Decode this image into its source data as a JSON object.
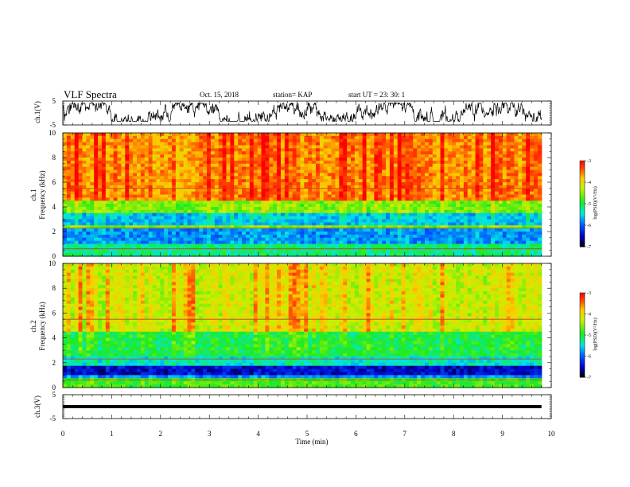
{
  "header": {
    "title": "VLF Spectra",
    "date": "Oct. 15, 2018",
    "station": "station= KAP",
    "start": "start  UT  =   23: 30: 1"
  },
  "chart_data": [
    {
      "type": "line",
      "name": "ch1-waveform",
      "ylabel": "ch.1(V)",
      "ylim": [
        -5,
        5
      ],
      "yticks": [
        "5",
        "-5"
      ],
      "note": "noisy waveform roughly between -3 V and 4 V over 0–9.8 min"
    },
    {
      "type": "heatmap",
      "name": "ch1-spectrogram",
      "ylabel": "ch.1\nFrequency (kHz)",
      "ylabel_line1": "ch.1",
      "ylabel_line2": "Frequency  (kHz)",
      "ylim": [
        0,
        10
      ],
      "yticks": [
        "0",
        "2",
        "4",
        "6",
        "8",
        "10"
      ],
      "colorbar": {
        "label": "log(PSD)(V²/Hz)",
        "range": [
          -7,
          -3
        ],
        "ticks": [
          "-3",
          "-4",
          "-5",
          "-6",
          "-7"
        ]
      },
      "bands_kHz": [
        {
          "from": 0,
          "to": 1.0,
          "level": -5.2
        },
        {
          "from": 1.0,
          "to": 2.2,
          "level": -5.8
        },
        {
          "from": 2.2,
          "to": 2.5,
          "level": -4.6
        },
        {
          "from": 2.5,
          "to": 3.6,
          "level": -5.6
        },
        {
          "from": 3.6,
          "to": 4.5,
          "level": -4.6
        },
        {
          "from": 4.5,
          "to": 10,
          "level": -3.6
        }
      ]
    },
    {
      "type": "heatmap",
      "name": "ch2-spectrogram",
      "ylabel_line1": "ch.2",
      "ylabel_line2": "Frequency  (kHz)",
      "ylim": [
        0,
        10
      ],
      "yticks": [
        "0",
        "2",
        "4",
        "6",
        "8",
        "10"
      ],
      "colorbar": {
        "label": "log(PSD)(V²/Hz)",
        "range": [
          -7,
          -3
        ],
        "ticks": [
          "-3",
          "-4",
          "-5",
          "-6",
          "-7"
        ]
      },
      "bands_kHz": [
        {
          "from": 0,
          "to": 0.8,
          "level": -4.8
        },
        {
          "from": 0.8,
          "to": 1.1,
          "level": -5.8
        },
        {
          "from": 1.1,
          "to": 1.8,
          "level": -6.5
        },
        {
          "from": 1.8,
          "to": 2.6,
          "level": -5.4
        },
        {
          "from": 2.6,
          "to": 4.5,
          "level": -5.0
        },
        {
          "from": 4.5,
          "to": 10,
          "level": -4.2
        }
      ]
    },
    {
      "type": "line",
      "name": "ch3-waveform",
      "ylabel": "ch.3(V)",
      "ylim": [
        -5,
        5
      ],
      "yticks": [
        "5",
        "-5"
      ],
      "note": "flat thick line at about 0 V"
    }
  ],
  "xaxis": {
    "label": "Time  (min)",
    "range": [
      0,
      10
    ],
    "ticks": [
      "0",
      "1",
      "2",
      "3",
      "4",
      "5",
      "6",
      "7",
      "8",
      "9",
      "10"
    ],
    "data_end_min": 9.8
  }
}
